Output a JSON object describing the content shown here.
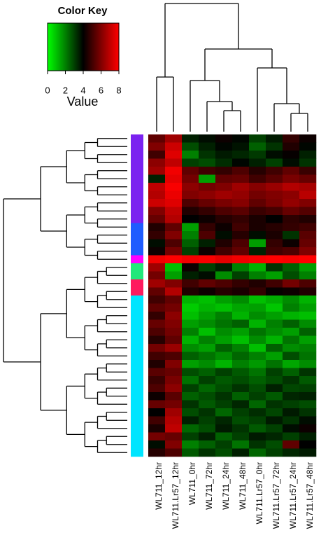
{
  "chart_data": {
    "type": "heatmap",
    "columns": [
      "WL711_12hr",
      "WL711.Lr57_12hr",
      "WL711_0hr",
      "WL711_72hr",
      "WL711_24hr",
      "WL711_48hr",
      "WL711.Lr57_0hr",
      "WL711.Lr57_72hr",
      "WL711.Lr57_24hr",
      "WL711.Lr57_48hr"
    ],
    "colors": [
      "#00ff00",
      "#000000",
      "#ff0000"
    ],
    "row_colors": [
      "#7b22f0",
      "#7b22f0",
      "#7b22f0",
      "#7b22f0",
      "#7b22f0",
      "#7b22f0",
      "#7b22f0",
      "#7b22f0",
      "#7b22f0",
      "#7b22f0",
      "#7b22f0",
      "#1f5cff",
      "#1f5cff",
      "#1f5cff",
      "#1f5cff",
      "#ff00ff",
      "#22e87a",
      "#22e87a",
      "#ff1a5e",
      "#ff1a5e",
      "#00e5ff",
      "#00e5ff",
      "#00e5ff",
      "#00e5ff",
      "#00e5ff",
      "#00e5ff",
      "#00e5ff",
      "#00e5ff",
      "#00e5ff",
      "#00e5ff",
      "#00e5ff",
      "#00e5ff",
      "#00e5ff",
      "#00e5ff",
      "#00e5ff",
      "#00e5ff",
      "#00e5ff",
      "#00e5ff",
      "#00e5ff",
      "#00e5ff"
    ],
    "z": [
      [
        5.5,
        6.5,
        3.5,
        3.8,
        4.2,
        3.9,
        3.0,
        3.6,
        4.8,
        4.2
      ],
      [
        6.0,
        7.2,
        2.8,
        3.5,
        3.9,
        3.7,
        2.5,
        3.2,
        4.5,
        3.9
      ],
      [
        5.0,
        7.5,
        2.0,
        3.2,
        3.6,
        3.4,
        3.1,
        3.8,
        4.1,
        3.5
      ],
      [
        6.2,
        7.0,
        3.0,
        2.8,
        3.3,
        3.9,
        3.5,
        3.0,
        3.8,
        3.2
      ],
      [
        6.5,
        7.8,
        5.5,
        5.0,
        4.8,
        5.2,
        4.6,
        5.0,
        5.5,
        4.9
      ],
      [
        3.5,
        7.6,
        5.8,
        1.5,
        5.5,
        5.6,
        5.0,
        5.4,
        5.9,
        5.6
      ],
      [
        7.0,
        7.9,
        6.2,
        5.8,
        6.0,
        6.5,
        6.1,
        6.4,
        6.8,
        6.6
      ],
      [
        6.8,
        7.7,
        6.0,
        6.2,
        6.5,
        6.3,
        5.8,
        6.0,
        6.2,
        6.9
      ],
      [
        7.2,
        7.5,
        5.2,
        5.6,
        5.9,
        6.1,
        5.5,
        5.9,
        6.3,
        6.0
      ],
      [
        6.0,
        7.0,
        4.5,
        4.8,
        5.2,
        5.4,
        4.9,
        5.1,
        5.6,
        5.3
      ],
      [
        5.6,
        6.8,
        4.0,
        4.2,
        4.6,
        4.8,
        4.4,
        4.0,
        4.7,
        4.5
      ],
      [
        4.5,
        5.5,
        1.5,
        4.8,
        4.2,
        5.0,
        4.4,
        4.6,
        4.8,
        5.0
      ],
      [
        4.8,
        6.0,
        2.0,
        5.2,
        3.8,
        4.6,
        3.8,
        4.4,
        3.2,
        5.4
      ],
      [
        3.8,
        5.2,
        2.5,
        3.5,
        4.5,
        5.2,
        1.5,
        4.8,
        4.2,
        5.6
      ],
      [
        4.2,
        5.8,
        3.0,
        4.2,
        5.0,
        5.5,
        3.5,
        5.0,
        5.2,
        6.0
      ],
      [
        7.8,
        8.0,
        7.8,
        7.9,
        7.6,
        7.8,
        7.9,
        8.0,
        7.9,
        8.0
      ],
      [
        6.5,
        1.0,
        4.2,
        3.0,
        3.5,
        2.0,
        1.2,
        3.2,
        2.5,
        1.5
      ],
      [
        5.8,
        1.5,
        3.5,
        3.8,
        1.8,
        3.0,
        2.0,
        1.5,
        2.8,
        2.0
      ],
      [
        6.5,
        6.0,
        5.0,
        5.5,
        5.2,
        4.8,
        4.5,
        5.0,
        5.8,
        5.2
      ],
      [
        5.5,
        6.8,
        4.5,
        4.2,
        4.6,
        4.4,
        4.8,
        4.1,
        4.2,
        4.5
      ],
      [
        5.0,
        5.5,
        1.2,
        1.0,
        1.5,
        1.8,
        1.0,
        1.3,
        1.8,
        1.2
      ],
      [
        5.5,
        5.8,
        0.8,
        1.2,
        1.0,
        1.4,
        1.5,
        0.9,
        2.0,
        1.5
      ],
      [
        4.8,
        6.2,
        1.0,
        1.5,
        2.0,
        1.2,
        1.8,
        1.5,
        1.2,
        1.0
      ],
      [
        5.6,
        6.0,
        1.5,
        1.8,
        2.2,
        2.5,
        1.2,
        2.0,
        2.5,
        1.8
      ],
      [
        5.2,
        5.8,
        2.0,
        1.0,
        1.8,
        1.5,
        2.2,
        1.8,
        1.5,
        2.5
      ],
      [
        4.6,
        5.5,
        1.2,
        2.0,
        1.5,
        1.0,
        1.8,
        1.2,
        2.2,
        1.5
      ],
      [
        5.8,
        6.4,
        1.8,
        1.5,
        2.5,
        2.0,
        1.0,
        2.5,
        1.8,
        2.0
      ],
      [
        5.0,
        5.2,
        2.5,
        2.2,
        1.8,
        2.4,
        2.0,
        1.5,
        2.8,
        2.2
      ],
      [
        4.5,
        6.0,
        1.5,
        1.8,
        1.2,
        2.0,
        1.6,
        2.2,
        1.4,
        1.8
      ],
      [
        5.4,
        5.6,
        2.8,
        2.5,
        3.0,
        2.6,
        2.2,
        3.0,
        2.5,
        3.2
      ],
      [
        4.9,
        5.9,
        2.2,
        3.0,
        2.6,
        2.8,
        2.5,
        2.8,
        3.2,
        2.6
      ],
      [
        5.2,
        6.2,
        3.0,
        2.4,
        2.8,
        3.2,
        2.8,
        3.5,
        2.9,
        3.0
      ],
      [
        4.2,
        5.4,
        2.5,
        2.8,
        3.2,
        2.5,
        3.0,
        2.6,
        3.4,
        3.5
      ],
      [
        5.6,
        5.8,
        3.2,
        2.6,
        3.0,
        3.4,
        2.4,
        3.2,
        3.0,
        2.8
      ],
      [
        4.0,
        6.5,
        2.8,
        3.2,
        2.4,
        3.0,
        3.3,
        2.9,
        3.6,
        3.2
      ],
      [
        5.0,
        6.8,
        3.5,
        3.0,
        3.4,
        2.8,
        3.0,
        3.6,
        3.2,
        3.8
      ],
      [
        4.4,
        7.0,
        2.4,
        2.8,
        3.6,
        3.2,
        2.6,
        3.0,
        3.8,
        4.2
      ],
      [
        5.8,
        5.6,
        3.0,
        3.5,
        2.5,
        3.0,
        3.6,
        3.4,
        3.0,
        3.5
      ],
      [
        3.8,
        6.0,
        2.0,
        2.5,
        3.0,
        2.2,
        3.2,
        2.8,
        5.5,
        4.0
      ],
      [
        4.6,
        5.2,
        2.6,
        3.2,
        2.8,
        3.5,
        2.4,
        3.0,
        3.4,
        3.6
      ]
    ],
    "colorbar": {
      "title": "Color Key",
      "label": "Value",
      "lim": [
        0,
        8
      ],
      "ticks": [
        0,
        2,
        4,
        6,
        8
      ]
    }
  }
}
